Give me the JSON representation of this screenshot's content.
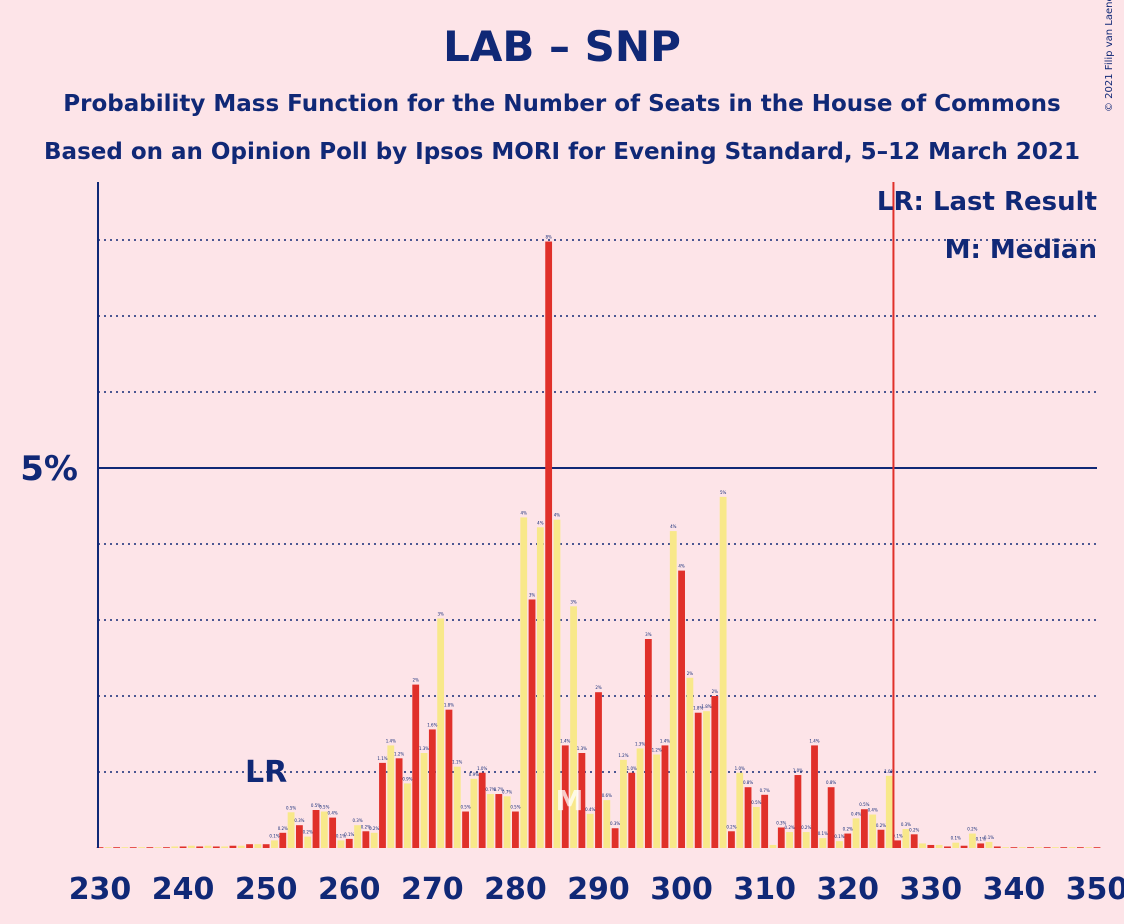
{
  "title": "LAB – SNP",
  "subtitle1": "Probability Mass Function for the Number of Seats in the House of Commons",
  "subtitle2": "Based on an Opinion Poll by Ipsos MORI for Evening Standard, 5–12 March 2021",
  "copyright": "© 2021 Filip van Laenen",
  "legend": {
    "lr": "LR: Last Result",
    "m": "M: Median"
  },
  "colors": {
    "bar_red": "#e0302a",
    "bar_yellow": "#f8e88a",
    "text": "#102876",
    "majority_line": "#e0302a",
    "background": "#fde4e8"
  },
  "chart_data": {
    "type": "bar",
    "x_ticks": [
      230,
      240,
      250,
      260,
      270,
      280,
      290,
      300,
      310,
      320,
      330,
      340,
      350
    ],
    "xlim": [
      230,
      350
    ],
    "ylim": [
      0,
      8
    ],
    "y_tick_label": "5%",
    "y_tick_value": 5,
    "gridlines_every": 1,
    "last_result_seat": 250,
    "last_result_label": "LR",
    "median_seat": 287,
    "median_label": "M",
    "majority_line_seat": 326,
    "seats": [
      230,
      231,
      232,
      233,
      234,
      235,
      236,
      237,
      238,
      239,
      240,
      241,
      242,
      243,
      244,
      245,
      246,
      247,
      248,
      249,
      250,
      251,
      252,
      253,
      254,
      255,
      256,
      257,
      258,
      259,
      260,
      261,
      262,
      263,
      264,
      265,
      266,
      267,
      268,
      269,
      270,
      271,
      272,
      273,
      274,
      275,
      276,
      277,
      278,
      279,
      280,
      281,
      282,
      283,
      284,
      285,
      286,
      287,
      288,
      289,
      290,
      291,
      292,
      293,
      294,
      295,
      296,
      297,
      298,
      299,
      300,
      301,
      302,
      303,
      304,
      305,
      306,
      307,
      308,
      309,
      310,
      311,
      312,
      313,
      314,
      315,
      316,
      317,
      318,
      319,
      320,
      321,
      322,
      323,
      324,
      325,
      326,
      327,
      328,
      329,
      330,
      331,
      332,
      333,
      334,
      335,
      336,
      337,
      338,
      339,
      340,
      341,
      342,
      343,
      344,
      345,
      346,
      347,
      348,
      349,
      350
    ],
    "values": [
      0,
      0,
      0,
      0,
      0,
      0,
      0.01,
      0.01,
      0.01,
      0.02,
      0.02,
      0.03,
      0.02,
      0.03,
      0.02,
      0.02,
      0.03,
      0.03,
      0.05,
      0.05,
      0.05,
      0.1,
      0.2,
      0.47,
      0.3,
      0.15,
      0.5,
      0.48,
      0.4,
      0.1,
      0.12,
      0.3,
      0.22,
      0.2,
      1.12,
      1.35,
      1.18,
      0.85,
      2.15,
      1.25,
      1.56,
      3.02,
      1.82,
      1.07,
      0.48,
      0.91,
      0.99,
      0.71,
      0.71,
      0.68,
      0.48,
      4.35,
      3.27,
      4.22,
      7.98,
      4.32,
      1.35,
      3.18,
      1.25,
      0.45,
      2.05,
      0.63,
      0.26,
      1.16,
      0.99,
      1.31,
      2.75,
      1.23,
      1.35,
      4.17,
      3.65,
      2.24,
      1.78,
      1.8,
      2.0,
      4.62,
      0.22,
      0.99,
      0.8,
      0.54,
      0.7,
      0.04,
      0.27,
      0.21,
      0.96,
      0.21,
      1.35,
      0.13,
      0.8,
      0.09,
      0.19,
      0.39,
      0.51,
      0.44,
      0.24,
      0.95,
      0.1,
      0.25,
      0.18,
      0.06,
      0.04,
      0.04,
      0.02,
      0.07,
      0.03,
      0.19,
      0.06,
      0.08,
      0.02,
      0.01,
      0.01,
      0.01,
      0.01,
      0,
      0,
      0,
      0,
      0,
      0,
      0,
      0
    ],
    "value_labels": [
      "",
      "",
      "",
      "",
      "",
      "",
      "",
      "",
      "",
      "",
      "",
      "",
      "",
      "",
      "",
      "",
      "",
      "",
      "",
      "",
      "",
      "0.1%",
      "0.2%",
      "0.5%",
      "0.3%",
      "0.2%",
      "0.5%",
      "0.5%",
      "0.4%",
      "0.1%",
      "0.1%",
      "0.3%",
      "0.2%",
      "0.2%",
      "1.1%",
      "1.4%",
      "1.2%",
      "0.9%",
      "2%",
      "1.3%",
      "1.6%",
      "3%",
      "1.8%",
      "1.1%",
      "0.5%",
      "0.9%",
      "1.0%",
      "0.7%",
      "0.7%",
      "0.7%",
      "0.5%",
      "4%",
      "3%",
      "4%",
      "8%",
      "4%",
      "1.4%",
      "3%",
      "1.3%",
      "0.4%",
      "2%",
      "0.6%",
      "0.3%",
      "1.2%",
      "1.0%",
      "1.3%",
      "3%",
      "1.2%",
      "1.4%",
      "4%",
      "4%",
      "2%",
      "1.8%",
      "1.8%",
      "2%",
      "5%",
      "0.2%",
      "1.0%",
      "0.8%",
      "0.5%",
      "0.7%",
      "",
      "0.3%",
      "0.2%",
      "1.0%",
      "0.2%",
      "1.4%",
      "0.1%",
      "0.8%",
      "0.1%",
      "0.2%",
      "0.4%",
      "0.5%",
      "0.4%",
      "0.2%",
      "1.0%",
      "0.1%",
      "0.3%",
      "0.2%",
      "",
      "",
      "",
      "",
      "0.1%",
      "",
      "0.2%",
      "0.1%",
      "0.1%",
      "",
      "",
      "",
      "",
      "",
      "",
      "",
      "",
      "",
      "",
      "",
      "",
      ""
    ]
  }
}
